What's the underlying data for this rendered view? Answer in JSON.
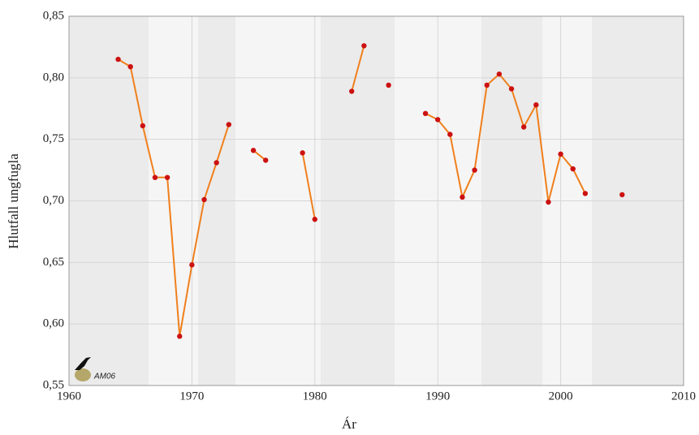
{
  "chart_data": {
    "type": "line",
    "xlabel": "Ár",
    "ylabel": "Hlutfall ungfugla",
    "annotation": "AM06",
    "x": [
      1964,
      1965,
      1966,
      1967,
      1968,
      1969,
      1970,
      1971,
      1972,
      1973,
      1974,
      1975,
      1976,
      1977,
      1978,
      1979,
      1980,
      1981,
      1982,
      1983,
      1984,
      1985,
      1986,
      1987,
      1988,
      1989,
      1990,
      1991,
      1992,
      1993,
      1994,
      1995,
      1996,
      1997,
      1998,
      1999,
      2000,
      2001,
      2002,
      2003,
      2004,
      2005
    ],
    "series": [
      {
        "color": "#f07f1c",
        "marker_color": "#cc1111",
        "values": [
          0.815,
          0.809,
          0.761,
          0.719,
          0.719,
          0.59,
          0.648,
          0.701,
          0.731,
          0.762,
          null,
          0.741,
          0.733,
          null,
          null,
          0.739,
          0.685,
          null,
          null,
          0.789,
          0.826,
          null,
          0.794,
          null,
          null,
          0.771,
          0.766,
          0.754,
          0.703,
          0.725,
          0.794,
          0.803,
          0.791,
          0.76,
          0.778,
          0.699,
          0.738,
          0.726,
          0.706,
          null,
          null,
          0.705
        ]
      }
    ],
    "xlim": [
      1960,
      2010
    ],
    "xticks": [
      1960,
      1970,
      1980,
      1990,
      2000,
      2010
    ],
    "ylim": [
      0.55,
      0.85
    ],
    "yticks": [
      {
        "value": 0.55,
        "label": "0,55"
      },
      {
        "value": 0.6,
        "label": "0,60"
      },
      {
        "value": 0.65,
        "label": "0,65"
      },
      {
        "value": 0.7,
        "label": "0,70"
      },
      {
        "value": 0.75,
        "label": "0,75"
      },
      {
        "value": 0.8,
        "label": "0,80"
      },
      {
        "value": 0.85,
        "label": "0,85"
      }
    ],
    "grid": true
  }
}
